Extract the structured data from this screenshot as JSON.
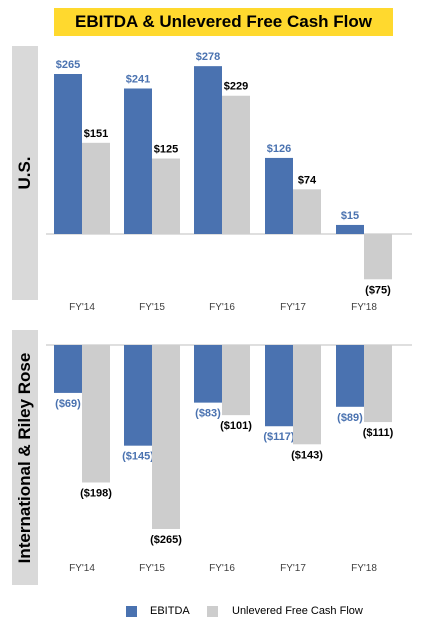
{
  "title": "EBITDA & Unlevered Free Cash Flow",
  "colors": {
    "ebitda": "#4a72b0",
    "ufcf": "#cdcdcd",
    "ebitda_label": "#4a72b0",
    "ufcf_label": "#000000",
    "accent": "#ffd92e",
    "band": "#d9d9d9"
  },
  "legend": {
    "ebitda": "EBITDA",
    "ufcf": "Unlevered Free Cash Flow"
  },
  "chart_data": [
    {
      "type": "bar",
      "panel_label": "U.S.",
      "categories": [
        "FY'14",
        "FY'15",
        "FY'16",
        "FY'17",
        "FY'18"
      ],
      "series": [
        {
          "name": "EBITDA",
          "values": [
            265,
            241,
            278,
            126,
            15
          ],
          "labels": [
            "$265",
            "$241",
            "$278",
            "$126",
            "$15"
          ]
        },
        {
          "name": "Unlevered Free Cash Flow",
          "values": [
            151,
            125,
            229,
            74,
            -75
          ],
          "labels": [
            "$151",
            "$125",
            "$229",
            "$74",
            "($75)"
          ]
        }
      ]
    },
    {
      "type": "bar",
      "panel_label": "International & Riley Rose",
      "categories": [
        "FY'14",
        "FY'15",
        "FY'16",
        "FY'17",
        "FY'18"
      ],
      "series": [
        {
          "name": "EBITDA",
          "values": [
            -69,
            -145,
            -83,
            -117,
            -89
          ],
          "labels": [
            "($69)",
            "($145)",
            "($83)",
            "($117)",
            "($89)"
          ]
        },
        {
          "name": "Unlevered Free Cash Flow",
          "values": [
            -198,
            -265,
            -101,
            -143,
            -111
          ],
          "labels": [
            "($198)",
            "($265)",
            "($101)",
            "($143)",
            "($111)"
          ]
        }
      ]
    }
  ]
}
